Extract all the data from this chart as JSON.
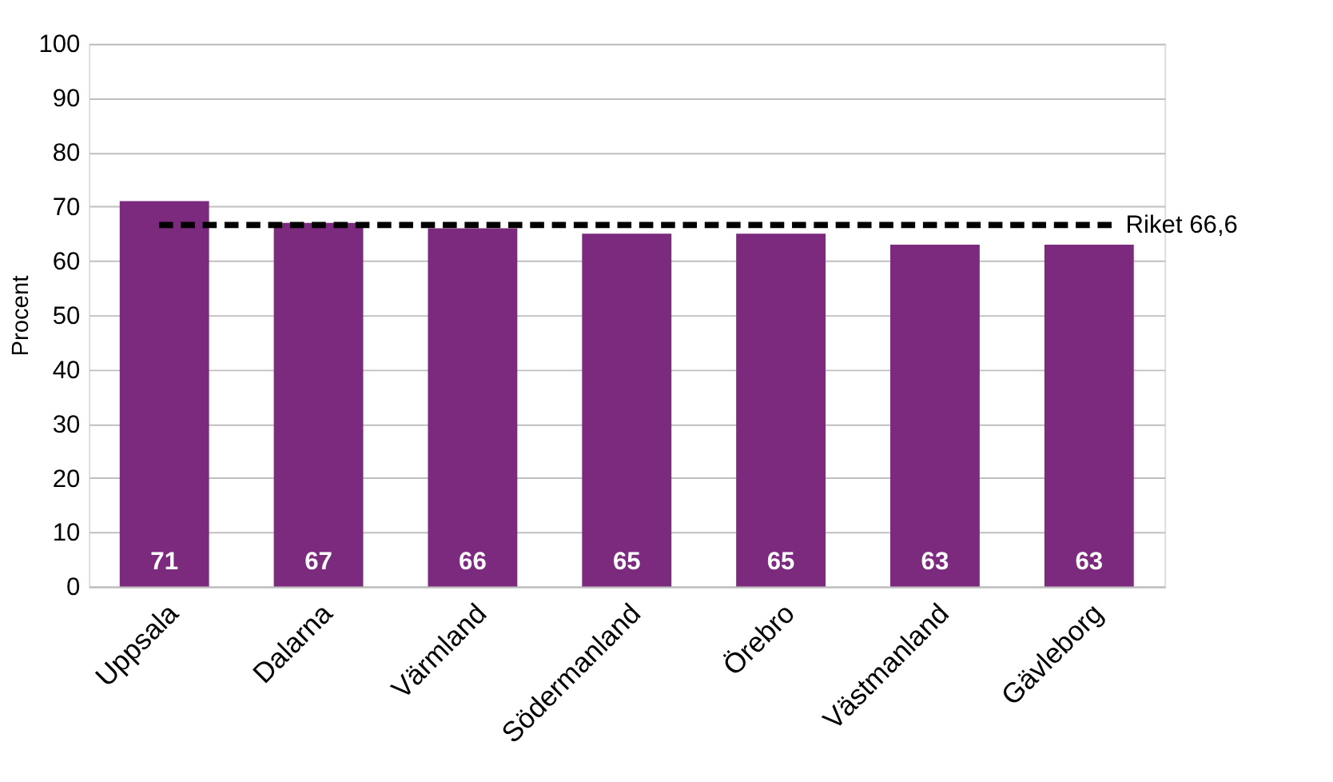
{
  "chart_data": {
    "type": "bar",
    "ylabel": "Procent",
    "categories": [
      "Uppsala",
      "Dalarna",
      "Värmland",
      "Södermanland",
      "Örebro",
      "Västmanland",
      "Gävleborg"
    ],
    "values": [
      71,
      67,
      66,
      65,
      65,
      63,
      63
    ],
    "color": "#7b2a7d",
    "ylim": [
      0,
      100
    ],
    "yticks": [
      0,
      10,
      20,
      30,
      40,
      50,
      60,
      70,
      80,
      90,
      100
    ],
    "grid": "y",
    "data_labels": true,
    "ref_lines": [
      {
        "axis": "y",
        "value": 66.6,
        "label": "Riket 66,6",
        "color": "#000000",
        "line_style": "dashed"
      }
    ]
  }
}
